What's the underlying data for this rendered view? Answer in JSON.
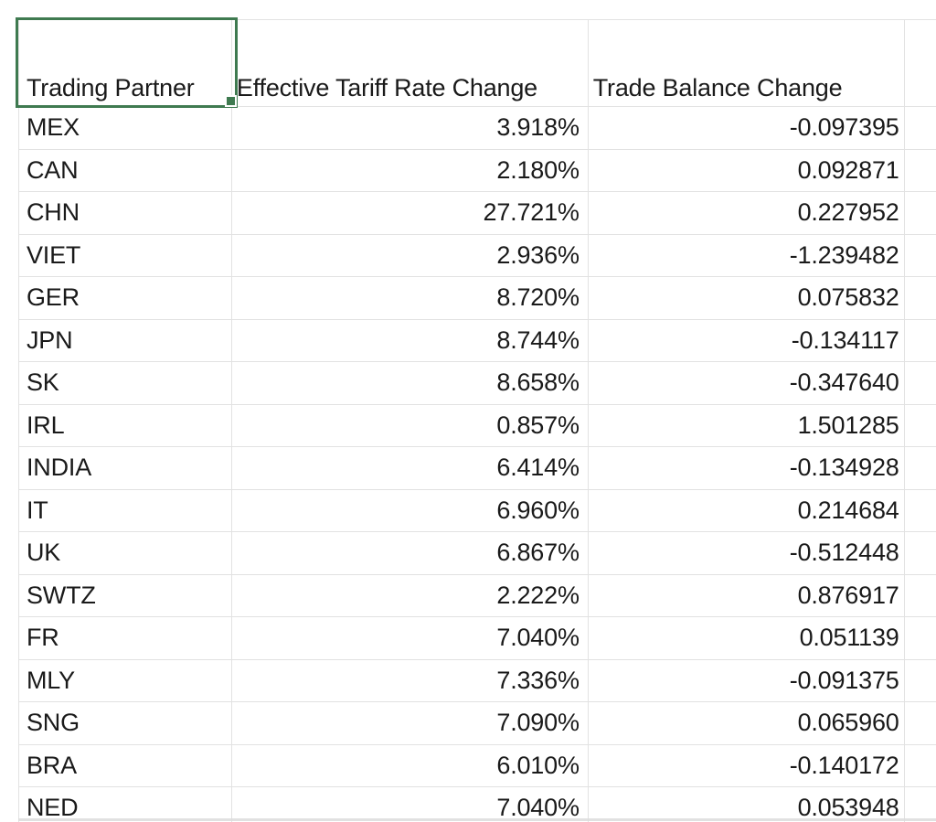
{
  "table": {
    "headers": {
      "partner": "Trading Partner",
      "tariff": "Effective Tariff Rate Change",
      "balance": "Trade Balance Change"
    },
    "rows": [
      {
        "partner": "MEX",
        "tariff": "3.918%",
        "balance": "-0.097395"
      },
      {
        "partner": "CAN",
        "tariff": "2.180%",
        "balance": "0.092871"
      },
      {
        "partner": "CHN",
        "tariff": "27.721%",
        "balance": "0.227952"
      },
      {
        "partner": "VIET",
        "tariff": "2.936%",
        "balance": "-1.239482"
      },
      {
        "partner": "GER",
        "tariff": "8.720%",
        "balance": "0.075832"
      },
      {
        "partner": "JPN",
        "tariff": "8.744%",
        "balance": "-0.134117"
      },
      {
        "partner": "SK",
        "tariff": "8.658%",
        "balance": "-0.347640"
      },
      {
        "partner": "IRL",
        "tariff": "0.857%",
        "balance": "1.501285"
      },
      {
        "partner": "INDIA",
        "tariff": "6.414%",
        "balance": "-0.134928"
      },
      {
        "partner": "IT",
        "tariff": "6.960%",
        "balance": "0.214684"
      },
      {
        "partner": "UK",
        "tariff": "6.867%",
        "balance": "-0.512448"
      },
      {
        "partner": "SWTZ",
        "tariff": "2.222%",
        "balance": "0.876917"
      },
      {
        "partner": "FR",
        "tariff": "7.040%",
        "balance": "0.051139"
      },
      {
        "partner": "MLY",
        "tariff": "7.336%",
        "balance": "-0.091375"
      },
      {
        "partner": "SNG",
        "tariff": "7.090%",
        "balance": "0.065960"
      },
      {
        "partner": "BRA",
        "tariff": "6.010%",
        "balance": "-0.140172"
      },
      {
        "partner": "NED",
        "tariff": "7.040%",
        "balance": "0.053948"
      }
    ]
  },
  "selection": {
    "selected_cell_label": "Trading Partner"
  },
  "colors": {
    "selection_green": "#3f7a50",
    "gridline": "#e2e2e2",
    "text": "#1a1a1a",
    "background": "#ffffff"
  }
}
